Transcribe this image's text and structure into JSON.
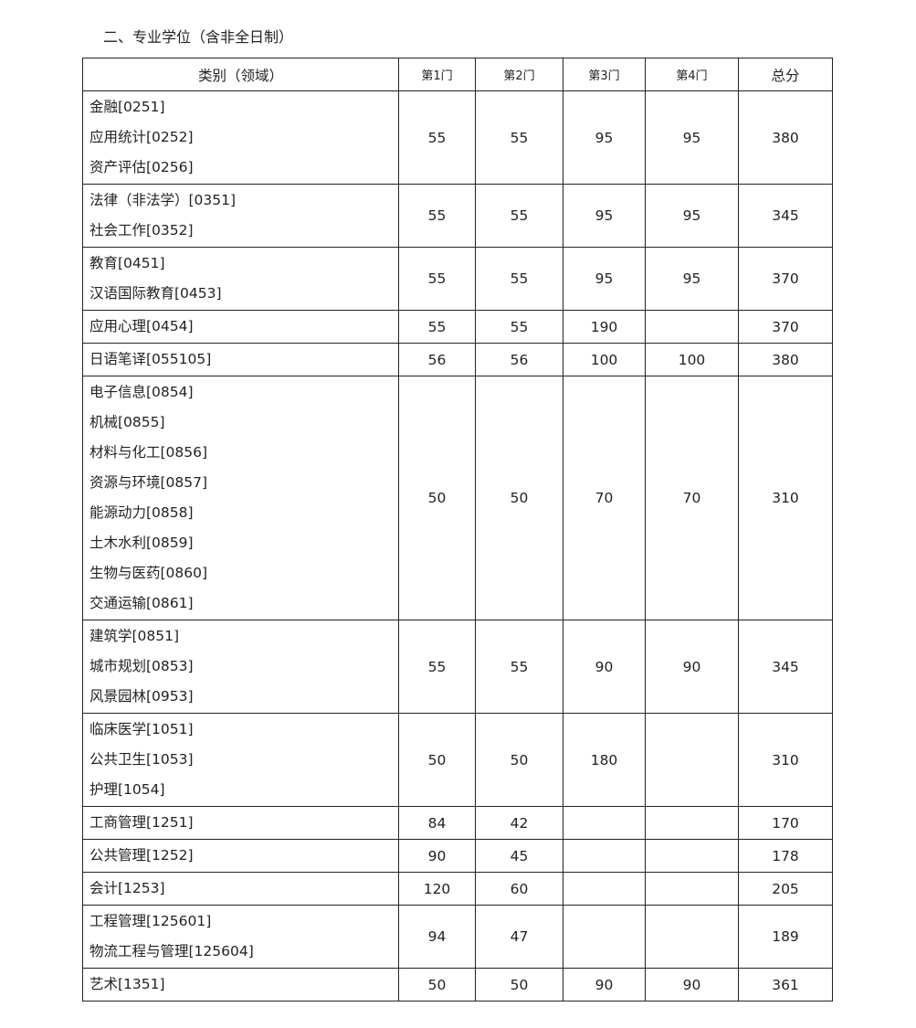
{
  "title": "二、专业学位（含非全日制）",
  "headers": [
    "类别（领域）",
    "第1门",
    "第2门",
    "第3门",
    "第4门",
    "总分"
  ],
  "rows": [
    {
      "categories": [
        "金融[0251]",
        "应用统计[0252]",
        "资产评估[0256]"
      ],
      "scores": [
        "55",
        "55",
        "95",
        "95",
        "380"
      ]
    },
    {
      "categories": [
        "法律（非法学）[0351]",
        "社会工作[0352]"
      ],
      "scores": [
        "55",
        "55",
        "95",
        "95",
        "345"
      ]
    },
    {
      "categories": [
        "教育[0451]",
        "汉语国际教育[0453]"
      ],
      "scores": [
        "55",
        "55",
        "95",
        "95",
        "370"
      ]
    },
    {
      "categories": [
        "应用心理[0454]"
      ],
      "scores": [
        "55",
        "55",
        "190",
        "",
        "370"
      ]
    },
    {
      "categories": [
        "日语笔译[055105]"
      ],
      "scores": [
        "56",
        "56",
        "100",
        "100",
        "380"
      ]
    },
    {
      "categories": [
        "电子信息[0854]",
        "机械[0855]",
        "材料与化工[0856]",
        "资源与环境[0857]",
        "能源动力[0858]",
        "土木水利[0859]",
        "生物与医药[0860]",
        "交通运输[0861]"
      ],
      "scores": [
        "50",
        "50",
        "70",
        "70",
        "310"
      ]
    },
    {
      "categories": [
        "建筑学[0851]",
        "城市规划[0853]",
        "风景园林[0953]"
      ],
      "scores": [
        "55",
        "55",
        "90",
        "90",
        "345"
      ]
    },
    {
      "categories": [
        "临床医学[1051]",
        "公共卫生[1053]",
        "护理[1054]"
      ],
      "scores": [
        "50",
        "50",
        "180",
        "",
        "310"
      ]
    },
    {
      "categories": [
        "工商管理[1251]"
      ],
      "scores": [
        "84",
        "42",
        "",
        "",
        "170"
      ]
    },
    {
      "categories": [
        "公共管理[1252]"
      ],
      "scores": [
        "90",
        "45",
        "",
        "",
        "178"
      ]
    },
    {
      "categories": [
        "会计[1253]"
      ],
      "scores": [
        "120",
        "60",
        "",
        "",
        "205"
      ]
    },
    {
      "categories": [
        "工程管理[125601]",
        "物流工程与管理[125604]"
      ],
      "scores": [
        "94",
        "47",
        "",
        "",
        "189"
      ]
    },
    {
      "categories": [
        "艺术[1351]"
      ],
      "scores": [
        "50",
        "50",
        "90",
        "90",
        "361"
      ]
    }
  ]
}
